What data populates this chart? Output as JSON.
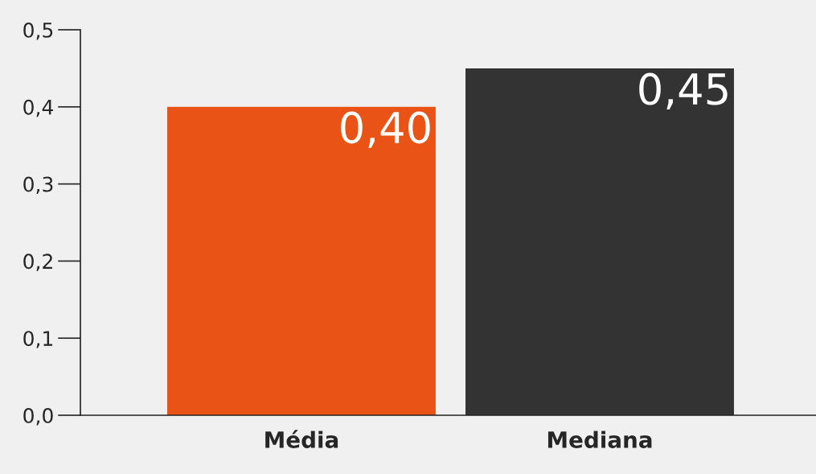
{
  "chart_data": {
    "type": "bar",
    "categories": [
      "Média",
      "Mediana"
    ],
    "values": [
      0.4,
      0.45
    ],
    "colors": [
      "#e95316",
      "#333333"
    ],
    "value_labels": [
      "0,40",
      "0,45"
    ],
    "ylim": [
      0,
      0.5
    ],
    "yticks": [
      {
        "value": 0,
        "label": "0,0"
      },
      {
        "value": 0.1,
        "label": "0,1"
      },
      {
        "value": 0.2,
        "label": "0,2"
      },
      {
        "value": 0.3,
        "label": "0,3"
      },
      {
        "value": 0.4,
        "label": "0,4"
      },
      {
        "value": 0.5,
        "label": "0,5"
      }
    ],
    "grid": false,
    "legend": false
  }
}
